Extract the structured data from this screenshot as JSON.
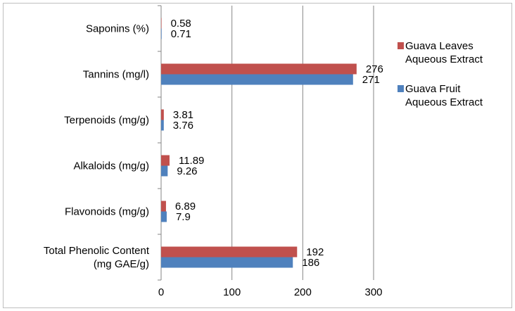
{
  "chart_data": {
    "type": "bar",
    "orientation": "horizontal",
    "categories": [
      [
        "Saponins (%)"
      ],
      [
        "Tannins (mg/l)"
      ],
      [
        "Terpenoids (mg/g)"
      ],
      [
        "Alkaloids (mg/g)"
      ],
      [
        "Flavonoids (mg/g)"
      ],
      [
        "Total Phenolic Content",
        "(mg GAE/g)"
      ]
    ],
    "series": [
      {
        "name": [
          "Guava Leaves",
          "Aqueous Extract"
        ],
        "color": "#c0504d",
        "values": [
          0.58,
          276,
          3.81,
          11.89,
          6.89,
          192
        ],
        "labels": [
          "0.58",
          "276",
          "3.81",
          "11.89",
          "6.89",
          "192"
        ]
      },
      {
        "name": [
          "Guava Fruit",
          "Aqueous Extract"
        ],
        "color": "#4f81bd",
        "values": [
          0.71,
          271,
          3.76,
          9.26,
          7.9,
          186
        ],
        "labels": [
          "0.71",
          "271",
          "3.76",
          "9.26",
          "7.9",
          "186"
        ]
      }
    ],
    "xlim": [
      0,
      300
    ],
    "xticks": [
      "0",
      "100",
      "200",
      "300"
    ],
    "grid": true,
    "legend_position": "right"
  }
}
